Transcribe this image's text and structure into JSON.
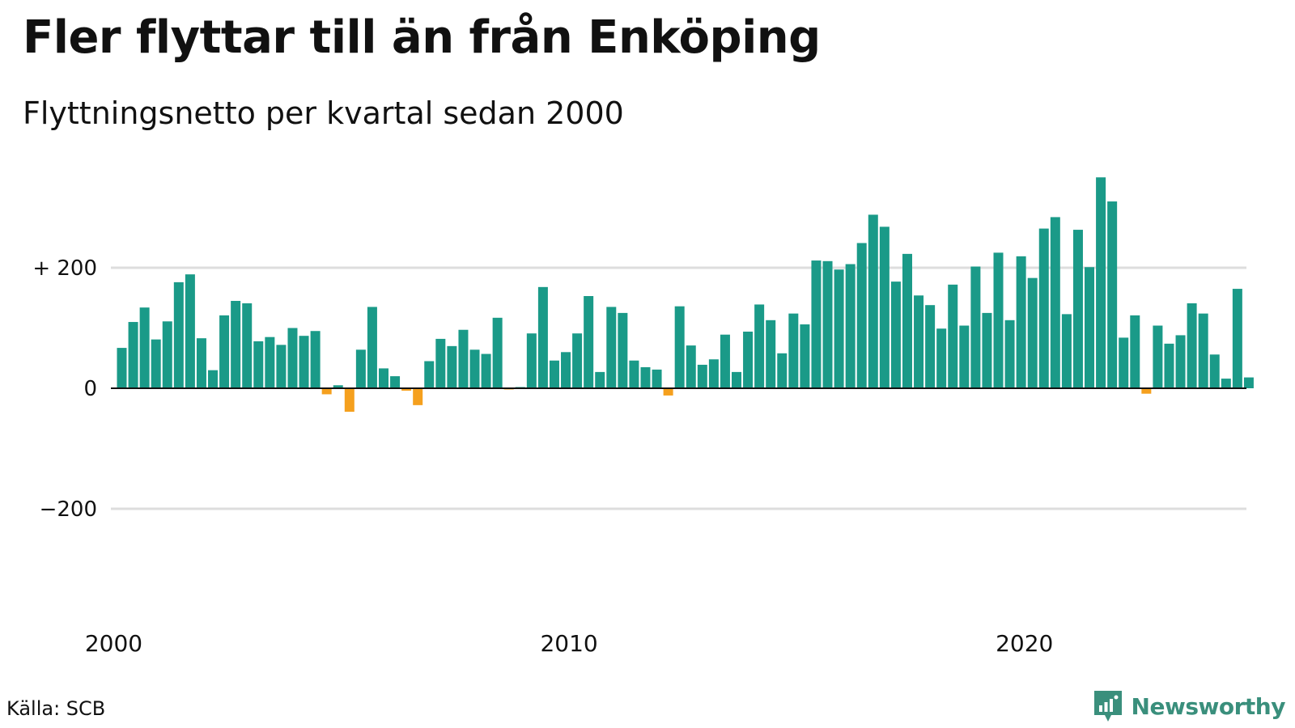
{
  "title": "Fler flyttar till än från Enköping",
  "subtitle": "Flyttningsnetto per kvartal sedan 2000",
  "source": "Källa: SCB",
  "brand": {
    "name": "Newsworthy",
    "icon": "newsworthy-logo-icon",
    "color": "#3a8f7c"
  },
  "colors": {
    "positive": "#1a9a88",
    "negative": "#f5a01e",
    "grid": "#dddddd",
    "zero_line": "#111111"
  },
  "chart_data": {
    "type": "bar",
    "title": "Fler flyttar till än från Enköping",
    "subtitle": "Flyttningsnetto per kvartal sedan 2000",
    "xlabel": "",
    "ylabel": "",
    "x_start": "2000 Q1",
    "x_ticks": [
      "2000",
      "2010",
      "2020"
    ],
    "y_ticks": [
      {
        "value": 200,
        "label": "+ 200"
      },
      {
        "value": 0,
        "label": "0"
      },
      {
        "value": -200,
        "label": "−200"
      }
    ],
    "ylim": [
      -390,
      355
    ],
    "grid": true,
    "legend": "none",
    "values": [
      67,
      110,
      134,
      81,
      111,
      176,
      189,
      83,
      30,
      121,
      145,
      141,
      78,
      85,
      72,
      100,
      87,
      95,
      -10,
      5,
      -39,
      64,
      135,
      33,
      20,
      -4,
      -28,
      45,
      82,
      70,
      97,
      64,
      57,
      117,
      -2,
      2,
      91,
      168,
      46,
      60,
      91,
      153,
      27,
      135,
      125,
      46,
      35,
      31,
      -12,
      136,
      71,
      39,
      48,
      89,
      27,
      94,
      139,
      113,
      58,
      124,
      106,
      212,
      211,
      197,
      206,
      241,
      288,
      268,
      177,
      223,
      154,
      138,
      99,
      172,
      104,
      202,
      125,
      225,
      113,
      219,
      183,
      265,
      284,
      123,
      263,
      201,
      350,
      310,
      84,
      121,
      -9,
      104,
      74,
      88,
      141,
      124,
      56,
      16,
      165,
      18
    ]
  }
}
